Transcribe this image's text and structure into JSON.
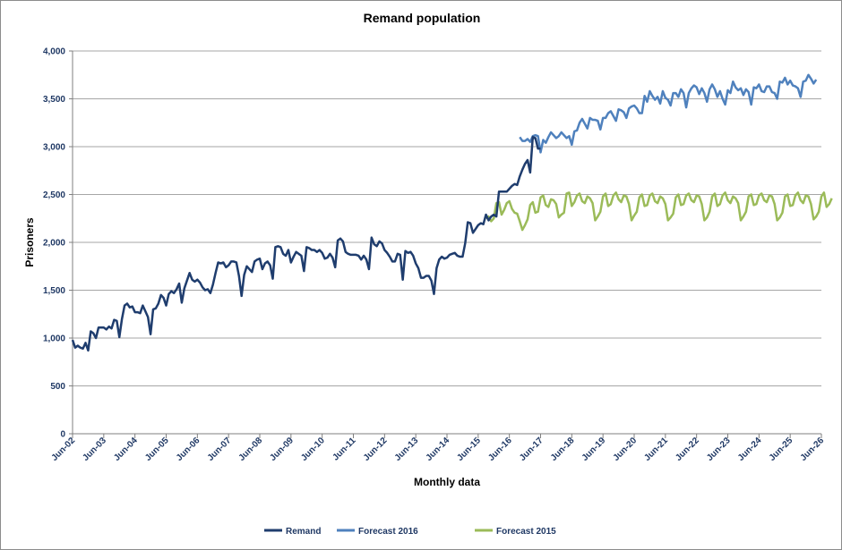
{
  "chart_data": {
    "type": "line",
    "title": "Remand population",
    "xlabel": "Monthly data",
    "ylabel": "Prisoners",
    "ylim": [
      0,
      4000
    ],
    "yticks": [
      0,
      500,
      1000,
      1500,
      2000,
      2500,
      3000,
      3500,
      4000
    ],
    "ytick_labels": [
      "0",
      "500",
      "1,000",
      "1,500",
      "2,000",
      "2,500",
      "3,000",
      "3,500",
      "4,000"
    ],
    "x_tick_labels": [
      "Jun-02",
      "Jun-03",
      "Jun-04",
      "Jun-05",
      "Jun-06",
      "Jun-07",
      "Jun-08",
      "Jun-09",
      "Jun-10",
      "Jun-11",
      "Jun-12",
      "Jun-13",
      "Jun-14",
      "Jun-15",
      "Jun-16",
      "Jun-17",
      "Jun-18",
      "Jun-19",
      "Jun-20",
      "Jun-21",
      "Jun-22",
      "Jun-23",
      "Jun-24",
      "Jun-25",
      "Jun-26"
    ],
    "x_start": "Jun-02",
    "x_unit": "months since Jun-02",
    "grid": true,
    "legend_position": "bottom",
    "series": [
      {
        "name": "Remand",
        "color": "#1f3d6e",
        "start_month": 0,
        "values": [
          980,
          900,
          920,
          900,
          890,
          950,
          870,
          1070,
          1050,
          1000,
          1110,
          1110,
          1110,
          1090,
          1120,
          1100,
          1190,
          1180,
          1010,
          1200,
          1340,
          1360,
          1320,
          1330,
          1270,
          1270,
          1260,
          1340,
          1280,
          1220,
          1040,
          1300,
          1310,
          1360,
          1450,
          1420,
          1340,
          1460,
          1490,
          1470,
          1510,
          1570,
          1370,
          1520,
          1600,
          1680,
          1610,
          1590,
          1610,
          1580,
          1530,
          1500,
          1510,
          1470,
          1560,
          1680,
          1790,
          1780,
          1790,
          1740,
          1760,
          1800,
          1800,
          1790,
          1650,
          1440,
          1660,
          1750,
          1720,
          1690,
          1800,
          1820,
          1830,
          1720,
          1780,
          1800,
          1760,
          1620,
          1950,
          1960,
          1950,
          1880,
          1860,
          1920,
          1790,
          1850,
          1900,
          1880,
          1860,
          1700,
          1950,
          1940,
          1920,
          1920,
          1900,
          1920,
          1890,
          1830,
          1840,
          1880,
          1840,
          1740,
          2020,
          2040,
          2010,
          1900,
          1880,
          1870,
          1870,
          1870,
          1860,
          1820,
          1860,
          1820,
          1720,
          2050,
          1980,
          1960,
          2010,
          1990,
          1920,
          1890,
          1850,
          1800,
          1800,
          1880,
          1870,
          1610,
          1910,
          1890,
          1900,
          1860,
          1780,
          1730,
          1630,
          1630,
          1650,
          1650,
          1600,
          1460,
          1730,
          1820,
          1850,
          1830,
          1840,
          1870,
          1880,
          1890,
          1860,
          1850,
          1850,
          1990,
          2210,
          2200,
          2100,
          2140,
          2180,
          2200,
          2190,
          2290,
          2230,
          2270,
          2290,
          2270,
          2530,
          2530,
          2530,
          2530,
          2560,
          2590,
          2610,
          2600,
          2690,
          2760,
          2820,
          2860,
          2730,
          3100,
          3090,
          2980,
          2980
        ]
      },
      {
        "name": "Forecast 2016",
        "color": "#4f81bd",
        "start_month": 172,
        "values": [
          3100,
          3060,
          3060,
          3080,
          3050,
          3110,
          3120,
          3110,
          2940,
          3070,
          3040,
          3100,
          3150,
          3120,
          3090,
          3110,
          3150,
          3120,
          3090,
          3110,
          3020,
          3160,
          3170,
          3250,
          3290,
          3240,
          3190,
          3300,
          3280,
          3280,
          3270,
          3180,
          3300,
          3300,
          3350,
          3370,
          3320,
          3270,
          3390,
          3380,
          3360,
          3300,
          3400,
          3420,
          3430,
          3400,
          3350,
          3350,
          3530,
          3470,
          3580,
          3530,
          3490,
          3520,
          3450,
          3580,
          3510,
          3490,
          3430,
          3560,
          3560,
          3520,
          3600,
          3560,
          3410,
          3560,
          3610,
          3640,
          3620,
          3550,
          3610,
          3560,
          3470,
          3600,
          3650,
          3600,
          3520,
          3580,
          3500,
          3440,
          3590,
          3560,
          3680,
          3620,
          3590,
          3610,
          3540,
          3600,
          3570,
          3440,
          3620,
          3610,
          3650,
          3580,
          3570,
          3630,
          3630,
          3570,
          3560,
          3500,
          3680,
          3670,
          3720,
          3650,
          3690,
          3640,
          3630,
          3610,
          3520,
          3680,
          3690,
          3750,
          3710,
          3660,
          3700
        ]
      },
      {
        "name": "Forecast 2015",
        "color": "#9bbb59",
        "start_month": 159,
        "values": [
          2250,
          2270,
          2220,
          2250,
          2410,
          2420,
          2290,
          2340,
          2410,
          2430,
          2350,
          2310,
          2300,
          2220,
          2130,
          2180,
          2240,
          2390,
          2420,
          2310,
          2320,
          2470,
          2490,
          2390,
          2370,
          2450,
          2440,
          2400,
          2260,
          2290,
          2310,
          2510,
          2520,
          2380,
          2420,
          2490,
          2510,
          2430,
          2410,
          2480,
          2460,
          2410,
          2230,
          2270,
          2320,
          2480,
          2510,
          2380,
          2400,
          2490,
          2520,
          2450,
          2420,
          2490,
          2480,
          2400,
          2230,
          2280,
          2320,
          2470,
          2500,
          2380,
          2390,
          2490,
          2510,
          2430,
          2410,
          2480,
          2460,
          2400,
          2230,
          2260,
          2300,
          2470,
          2500,
          2390,
          2400,
          2490,
          2510,
          2440,
          2420,
          2490,
          2480,
          2400,
          2230,
          2260,
          2320,
          2480,
          2510,
          2380,
          2400,
          2490,
          2520,
          2440,
          2410,
          2480,
          2460,
          2410,
          2230,
          2270,
          2320,
          2480,
          2500,
          2390,
          2400,
          2490,
          2510,
          2440,
          2420,
          2490,
          2480,
          2400,
          2230,
          2260,
          2310,
          2480,
          2500,
          2380,
          2390,
          2490,
          2520,
          2440,
          2410,
          2490,
          2480,
          2400,
          2240,
          2270,
          2320,
          2480,
          2520,
          2370,
          2400,
          2460
        ]
      }
    ]
  }
}
